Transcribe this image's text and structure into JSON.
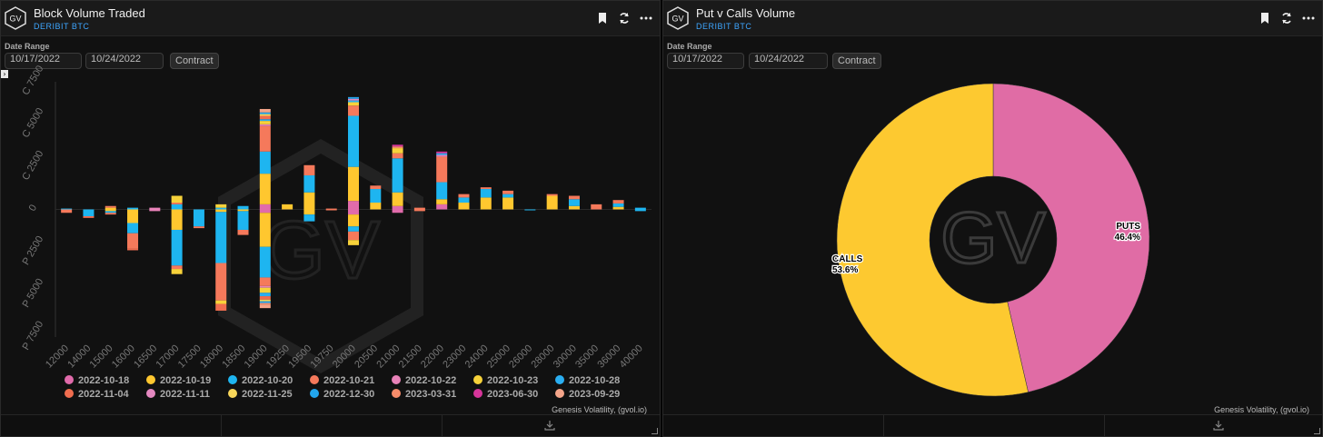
{
  "left_panel": {
    "title": "Block Volume Traded",
    "subtitle": "DERIBIT BTC",
    "date_range_label": "Date Range",
    "start_date": "10/17/2022",
    "end_date": "10/24/2022",
    "contract_label": "Contract",
    "footer": "Genesis Volatility, (gvol.io)",
    "watermark": "GV"
  },
  "right_panel": {
    "title": "Put v Calls Volume",
    "subtitle": "DERIBIT BTC",
    "date_range_label": "Date Range",
    "start_date": "10/17/2022",
    "end_date": "10/24/2022",
    "contract_label": "Contract",
    "footer": "Genesis Volatility, (gvol.io)",
    "watermark": "GV"
  },
  "logo_text": "GV",
  "chart_data": [
    {
      "type": "bar",
      "stacked": true,
      "ylim": [
        -7500,
        7500
      ],
      "yticks": [
        {
          "value": 7500,
          "label": "C 7500"
        },
        {
          "value": 5000,
          "label": "C 5000"
        },
        {
          "value": 2500,
          "label": "C 2500"
        },
        {
          "value": 0,
          "label": "0"
        },
        {
          "value": -2500,
          "label": "P 2500"
        },
        {
          "value": -5000,
          "label": "P 5000"
        },
        {
          "value": -7500,
          "label": "P 7500"
        }
      ],
      "categories": [
        "12000",
        "14000",
        "15000",
        "16000",
        "16500",
        "17000",
        "17500",
        "18000",
        "18500",
        "19000",
        "19250",
        "19500",
        "19750",
        "20000",
        "20500",
        "21000",
        "21500",
        "22000",
        "23000",
        "24000",
        "25000",
        "26000",
        "28000",
        "30000",
        "35000",
        "36000",
        "40000"
      ],
      "series": [
        {
          "name": "2022-10-18",
          "color": "#e16bab",
          "values": [
            0,
            0,
            0,
            0,
            0,
            0,
            0,
            0,
            0,
            [
              -200,
              300
            ],
            0,
            0,
            0,
            [
              -300,
              500
            ],
            0,
            [
              -200,
              200
            ],
            0,
            [
              0,
              300
            ],
            0,
            0,
            0,
            0,
            0,
            0,
            0,
            0,
            0
          ]
        },
        {
          "name": "2022-10-19",
          "color": "#ffc72f",
          "values": [
            0,
            0,
            [
              -100,
              100
            ],
            [
              -800,
              0
            ],
            0,
            [
              -1200,
              0
            ],
            0,
            [
              -150,
              0
            ],
            [
              -100,
              0
            ],
            [
              -2000,
              1800
            ],
            [
              0,
              300
            ],
            [
              -300,
              1000
            ],
            0,
            [
              -700,
              2000
            ],
            [
              0,
              400
            ],
            [
              0,
              800
            ],
            0,
            [
              0,
              300
            ],
            [
              0,
              400
            ],
            [
              0,
              700
            ],
            [
              0,
              700
            ],
            0,
            [
              0,
              800
            ],
            [
              0,
              200
            ],
            0,
            [
              0,
              150
            ],
            0
          ]
        },
        {
          "name": "2022-10-20",
          "color": "#1eb5f0",
          "values": [
            [
              0,
              50
            ],
            [
              -400,
              0
            ],
            [
              -100,
              0
            ],
            [
              -600,
              100
            ],
            0,
            [
              -2100,
              300
            ],
            [
              -1000,
              0
            ],
            [
              -3000,
              100
            ],
            [
              -1100,
              200
            ],
            [
              -1800,
              1300
            ],
            0,
            [
              -400,
              1000
            ],
            0,
            [
              -300,
              3000
            ],
            [
              0,
              800
            ],
            [
              0,
              2000
            ],
            0,
            [
              0,
              1000
            ],
            [
              0,
              300
            ],
            [
              0,
              500
            ],
            [
              0,
              200
            ],
            [
              -50,
              0
            ],
            0,
            [
              0,
              400
            ],
            0,
            [
              0,
              200
            ],
            [
              -100,
              100
            ]
          ]
        },
        {
          "name": "2022-10-21",
          "color": "#f5795b",
          "values": [
            [
              -200,
              0
            ],
            0,
            [
              -100,
              100
            ],
            [
              -900,
              0
            ],
            0,
            [
              -200,
              100
            ],
            [
              -100,
              0
            ],
            [
              -2200,
              0
            ],
            [
              -300,
              0
            ],
            [
              -500,
              1500
            ],
            0,
            [
              0,
              600
            ],
            [
              -50,
              50
            ],
            [
              -500,
              600
            ],
            [
              0,
              200
            ],
            [
              0,
              300
            ],
            [
              -100,
              100
            ],
            [
              0,
              1500
            ],
            [
              0,
              200
            ],
            [
              0,
              100
            ],
            [
              0,
              200
            ],
            0,
            [
              0,
              100
            ],
            [
              0,
              200
            ],
            [
              0,
              300
            ],
            [
              0,
              200
            ],
            0
          ]
        },
        {
          "name": "2022-10-22",
          "color": "#e882b8",
          "values": [
            0,
            0,
            0,
            0,
            [
              -100,
              100
            ],
            0,
            0,
            0,
            0,
            [
              -100,
              100
            ],
            0,
            0,
            0,
            0,
            0,
            0,
            0,
            [
              0,
              100
            ],
            0,
            0,
            0,
            0,
            0,
            0,
            0,
            0,
            0
          ]
        },
        {
          "name": "2022-10-23",
          "color": "#f7d23a",
          "values": [
            0,
            0,
            0,
            0,
            0,
            [
              -300,
              400
            ],
            0,
            [
              -200,
              200
            ],
            0,
            [
              -300,
              200
            ],
            0,
            0,
            0,
            [
              -300,
              200
            ],
            0,
            [
              0,
              300
            ],
            0,
            0,
            0,
            0,
            0,
            0,
            0,
            0,
            0,
            0,
            0
          ]
        },
        {
          "name": "2022-10-28",
          "color": "#2aaef1",
          "values": [
            0,
            0,
            0,
            0,
            0,
            0,
            0,
            0,
            0,
            [
              -200,
              100
            ],
            0,
            0,
            0,
            [
              0,
              100
            ],
            0,
            0,
            0,
            [
              0,
              100
            ],
            0,
            0,
            0,
            0,
            0,
            0,
            0,
            0,
            0
          ]
        },
        {
          "name": "2022-11-04",
          "color": "#f06d4f",
          "values": [
            0,
            [
              -100,
              0
            ],
            0,
            [
              -100,
              0
            ],
            0,
            0,
            0,
            [
              -400,
              0
            ],
            0,
            [
              -200,
              200
            ],
            0,
            0,
            0,
            0,
            0,
            0,
            0,
            0,
            0,
            0,
            0,
            0,
            0,
            0,
            0,
            0,
            0
          ]
        },
        {
          "name": "2022-11-11",
          "color": "#e488c0",
          "values": [
            0,
            0,
            0,
            0,
            0,
            0,
            0,
            0,
            0,
            0,
            0,
            0,
            0,
            [
              0,
              100
            ],
            0,
            0,
            0,
            0,
            0,
            0,
            0,
            0,
            0,
            0,
            0,
            0,
            0
          ]
        },
        {
          "name": "2022-11-25",
          "color": "#f9d75a",
          "values": [
            0,
            0,
            0,
            0,
            0,
            0,
            0,
            0,
            0,
            [
              -100,
              100
            ],
            0,
            0,
            0,
            0,
            0,
            0,
            0,
            0,
            0,
            0,
            0,
            0,
            0,
            0,
            0,
            0,
            0
          ]
        },
        {
          "name": "2022-12-30",
          "color": "#22a6ee",
          "values": [
            0,
            0,
            0,
            0,
            0,
            0,
            0,
            0,
            0,
            [
              -100,
              100
            ],
            0,
            0,
            0,
            [
              0,
              100
            ],
            0,
            0,
            0,
            0,
            0,
            0,
            0,
            0,
            0,
            0,
            0,
            0,
            0
          ]
        },
        {
          "name": "2023-03-31",
          "color": "#f78c6a",
          "values": [
            0,
            0,
            0,
            0,
            0,
            0,
            0,
            0,
            0,
            [
              -100,
              0
            ],
            0,
            0,
            0,
            0,
            0,
            [
              0,
              100
            ],
            0,
            0,
            0,
            0,
            0,
            0,
            0,
            0,
            0,
            0,
            0
          ]
        },
        {
          "name": "2023-06-30",
          "color": "#d6359a",
          "values": [
            0,
            0,
            0,
            0,
            0,
            0,
            0,
            0,
            0,
            0,
            0,
            0,
            0,
            0,
            0,
            [
              0,
              100
            ],
            0,
            [
              0,
              100
            ],
            0,
            0,
            0,
            0,
            0,
            0,
            0,
            0,
            0
          ]
        },
        {
          "name": "2023-09-29",
          "color": "#f4a58a",
          "values": [
            0,
            0,
            0,
            0,
            0,
            0,
            0,
            0,
            0,
            [
              -200,
              200
            ],
            0,
            0,
            0,
            0,
            0,
            0,
            0,
            0,
            0,
            0,
            0,
            0,
            0,
            0,
            0,
            0,
            0
          ]
        }
      ]
    },
    {
      "type": "pie",
      "donut": true,
      "slices": [
        {
          "label": "PUTS",
          "percent_label": "46.4%",
          "value": 46.4,
          "color": "#e06ca5"
        },
        {
          "label": "CALLS",
          "percent_label": "53.6%",
          "value": 53.6,
          "color": "#fdc930"
        }
      ]
    }
  ]
}
